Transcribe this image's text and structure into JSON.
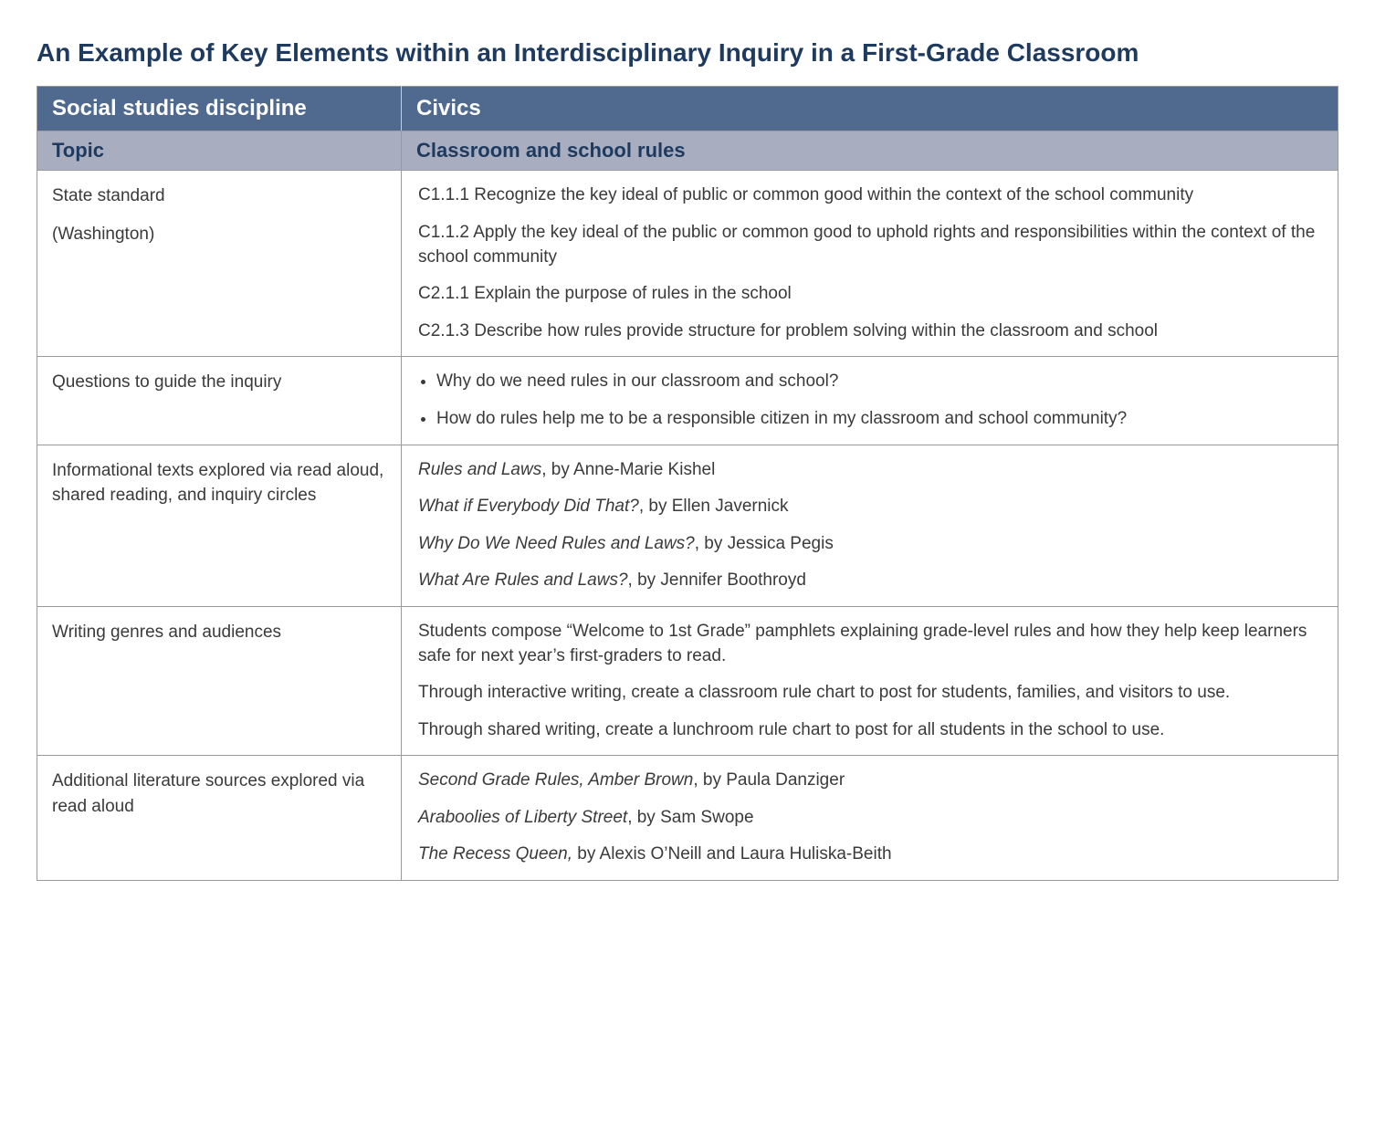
{
  "title": "An Example of Key Elements within an Interdisciplinary Inquiry in a First-Grade Classroom",
  "colors": {
    "title_text": "#1e3a5f",
    "header1_bg": "#50698e",
    "header1_text": "#ffffff",
    "header2_bg": "#a8aec0",
    "header2_text": "#1e3a5f",
    "body_text": "#3a3a3a",
    "border": "#9a9a9a"
  },
  "typography": {
    "title_fontsize": 28,
    "header1_fontsize": 24,
    "header2_fontsize": 22,
    "body_fontsize": 19
  },
  "table": {
    "type": "table",
    "column_widths_pct": [
      28,
      72
    ],
    "header1": {
      "left": "Social studies discipline",
      "right": "Civics"
    },
    "header2": {
      "left": "Topic",
      "right": "Classroom and school rules"
    },
    "rows": [
      {
        "label": "State standard\n(Washington)",
        "content": [
          {
            "type": "p",
            "text": "C1.1.1 Recognize the key ideal of public or common good within the context of the school community"
          },
          {
            "type": "p",
            "text": "C1.1.2 Apply the key ideal of the public or common good to uphold rights and responsibilities within the context of the school community"
          },
          {
            "type": "p",
            "text": "C2.1.1 Explain the purpose of rules in the school"
          },
          {
            "type": "p",
            "text": "C2.1.3 Describe how rules provide structure for problem solving within the classroom and school"
          }
        ]
      },
      {
        "label": "Questions to guide the inquiry",
        "content": [
          {
            "type": "ul",
            "items": [
              "Why do we need rules in our classroom and school?",
              "How do rules help me to be a responsible citizen in my classroom and school community?"
            ]
          }
        ]
      },
      {
        "label": "Informational texts explored via read aloud, shared reading, and inquiry circles",
        "content": [
          {
            "type": "book",
            "title": "Rules and Laws",
            "author": "Anne-Marie Kishel"
          },
          {
            "type": "book",
            "title": "What if Everybody Did That?",
            "author": "Ellen Javernick"
          },
          {
            "type": "book",
            "title": "Why Do We Need Rules and Laws?",
            "author": "Jessica Pegis"
          },
          {
            "type": "book",
            "title": "What Are Rules and Laws?",
            "author": "Jennifer Boothroyd"
          }
        ]
      },
      {
        "label": "Writing genres and audiences",
        "content": [
          {
            "type": "p",
            "text": "Students compose “Welcome to 1st Grade” pamphlets explaining grade-level rules and how they help keep learners safe for next year’s first-graders to read."
          },
          {
            "type": "p",
            "text": "Through interactive writing, create a classroom rule chart to post for students, families, and visitors to use."
          },
          {
            "type": "p",
            "text": "Through shared writing, create a lunchroom rule chart to post for all students in the school to use."
          }
        ]
      },
      {
        "label": "Additional literature sources explored via read aloud",
        "content": [
          {
            "type": "book",
            "title": "Second Grade Rules, Amber Brown",
            "author": "Paula Danziger"
          },
          {
            "type": "book",
            "title": "Araboolies of Liberty Street",
            "author": "Sam Swope"
          },
          {
            "type": "book",
            "title": "The Recess Queen,",
            "author": "Alexis O’Neill and Laura Huliska-Beith"
          }
        ]
      }
    ]
  }
}
